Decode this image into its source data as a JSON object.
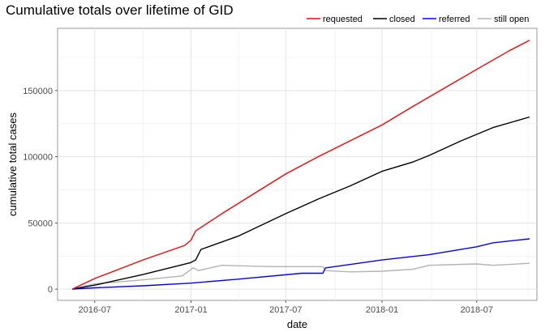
{
  "chart_data": {
    "type": "line",
    "title": "Cumulative totals over lifetime of GID",
    "xlabel": "date",
    "ylabel": "cumulative total cases",
    "x_ticks": [
      "2016-07",
      "2017-01",
      "2017-07",
      "2018-01",
      "2018-07"
    ],
    "y_ticks": [
      "0",
      "50000",
      "100000",
      "150000"
    ],
    "xlim": [
      "2016-04-21",
      "2018-10-24"
    ],
    "ylim": [
      -8500,
      197000
    ],
    "grid": true,
    "legend_position": "top-right",
    "series": [
      {
        "name": "requested",
        "color": "#ff0000",
        "points": [
          [
            "2016-05-19",
            0
          ],
          [
            "2016-07-01",
            8000
          ],
          [
            "2016-10-01",
            22000
          ],
          [
            "2016-12-20",
            33000
          ],
          [
            "2017-01-01",
            37000
          ],
          [
            "2017-01-10",
            44000
          ],
          [
            "2017-03-01",
            57000
          ],
          [
            "2017-05-01",
            72000
          ],
          [
            "2017-07-01",
            87000
          ],
          [
            "2017-09-01",
            100000
          ],
          [
            "2017-11-01",
            112000
          ],
          [
            "2018-01-01",
            124000
          ],
          [
            "2018-03-01",
            138000
          ],
          [
            "2018-05-01",
            152000
          ],
          [
            "2018-07-01",
            166000
          ],
          [
            "2018-09-01",
            180000
          ],
          [
            "2018-10-10",
            188000
          ]
        ]
      },
      {
        "name": "closed",
        "color": "#000000",
        "points": [
          [
            "2016-05-19",
            0
          ],
          [
            "2016-07-01",
            3000
          ],
          [
            "2016-10-01",
            11000
          ],
          [
            "2016-12-31",
            20000
          ],
          [
            "2017-01-10",
            22000
          ],
          [
            "2017-01-20",
            30000
          ],
          [
            "2017-04-01",
            40000
          ],
          [
            "2017-07-01",
            57000
          ],
          [
            "2017-09-01",
            68000
          ],
          [
            "2017-11-01",
            78000
          ],
          [
            "2018-01-01",
            89000
          ],
          [
            "2018-03-01",
            96000
          ],
          [
            "2018-04-01",
            101000
          ],
          [
            "2018-06-01",
            112000
          ],
          [
            "2018-08-01",
            122000
          ],
          [
            "2018-10-10",
            130000
          ]
        ]
      },
      {
        "name": "referred",
        "color": "#0000ff",
        "points": [
          [
            "2016-05-19",
            0
          ],
          [
            "2016-07-01",
            1000
          ],
          [
            "2016-10-01",
            2500
          ],
          [
            "2017-01-01",
            4500
          ],
          [
            "2017-04-01",
            7500
          ],
          [
            "2017-08-01",
            12000
          ],
          [
            "2017-09-10",
            12000
          ],
          [
            "2017-09-15",
            16000
          ],
          [
            "2018-01-01",
            22000
          ],
          [
            "2018-04-01",
            26000
          ],
          [
            "2018-07-01",
            32000
          ],
          [
            "2018-08-01",
            35000
          ],
          [
            "2018-10-10",
            38000
          ]
        ]
      },
      {
        "name": "still open",
        "color": "#b3b3b3",
        "points": [
          [
            "2016-05-19",
            0
          ],
          [
            "2016-07-01",
            4000
          ],
          [
            "2016-10-01",
            7000
          ],
          [
            "2016-12-15",
            10000
          ],
          [
            "2017-01-05",
            16000
          ],
          [
            "2017-01-15",
            14000
          ],
          [
            "2017-03-01",
            18000
          ],
          [
            "2017-06-01",
            17000
          ],
          [
            "2017-09-10",
            17000
          ],
          [
            "2017-09-15",
            14000
          ],
          [
            "2017-11-01",
            13000
          ],
          [
            "2018-01-01",
            13500
          ],
          [
            "2018-03-01",
            15000
          ],
          [
            "2018-04-01",
            18000
          ],
          [
            "2018-07-01",
            19000
          ],
          [
            "2018-08-01",
            18000
          ],
          [
            "2018-10-10",
            19500
          ]
        ]
      }
    ]
  }
}
